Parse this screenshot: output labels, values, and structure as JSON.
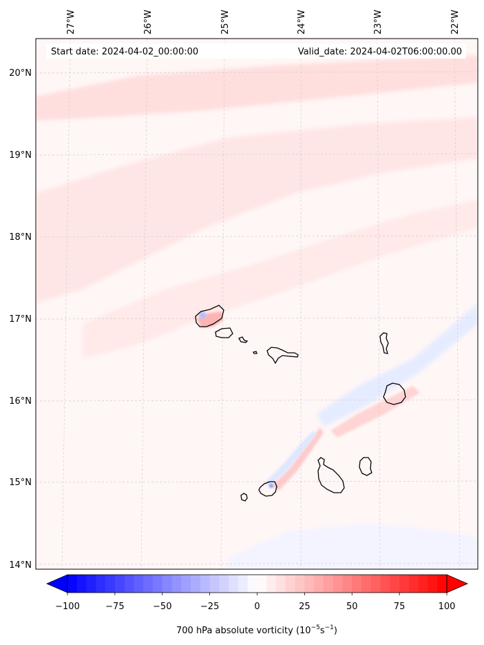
{
  "map": {
    "start_date": "Start date: 2024-04-02_00:00:00",
    "valid_date": "Valid_date: 2024-04-02T06:00:00.00",
    "lon_labels": [
      "27°W",
      "26°W",
      "25°W",
      "24°W",
      "23°W",
      "22°W"
    ],
    "lat_labels": [
      "20°N",
      "19°N",
      "18°N",
      "17°N",
      "16°N",
      "15°N",
      "14°N"
    ],
    "gridlines": true,
    "projection": "Lambert conformal"
  },
  "colorbar": {
    "label_prefix": "700 hPa absolute vorticity (10",
    "label_exp1": "−5",
    "label_mid": "s",
    "label_exp2": "−1",
    "label_suffix": ")",
    "ticks": [
      "−100",
      "−75",
      "−50",
      "−25",
      "0",
      "25",
      "50",
      "75",
      "100"
    ],
    "tick_values": [
      -100,
      -75,
      -50,
      -25,
      0,
      25,
      50,
      75,
      100
    ],
    "range": [
      -100,
      100
    ],
    "extend": "both",
    "colormap": "bwr",
    "low_color": "#0000ff",
    "mid_color": "#ffffff",
    "high_color": "#ff0000"
  },
  "chart_data": {
    "type": "heatmap",
    "variable": "700 hPa absolute vorticity",
    "units": "10^-5 s^-1",
    "vmin": -100,
    "vmax": 100,
    "background_value": 2
  }
}
